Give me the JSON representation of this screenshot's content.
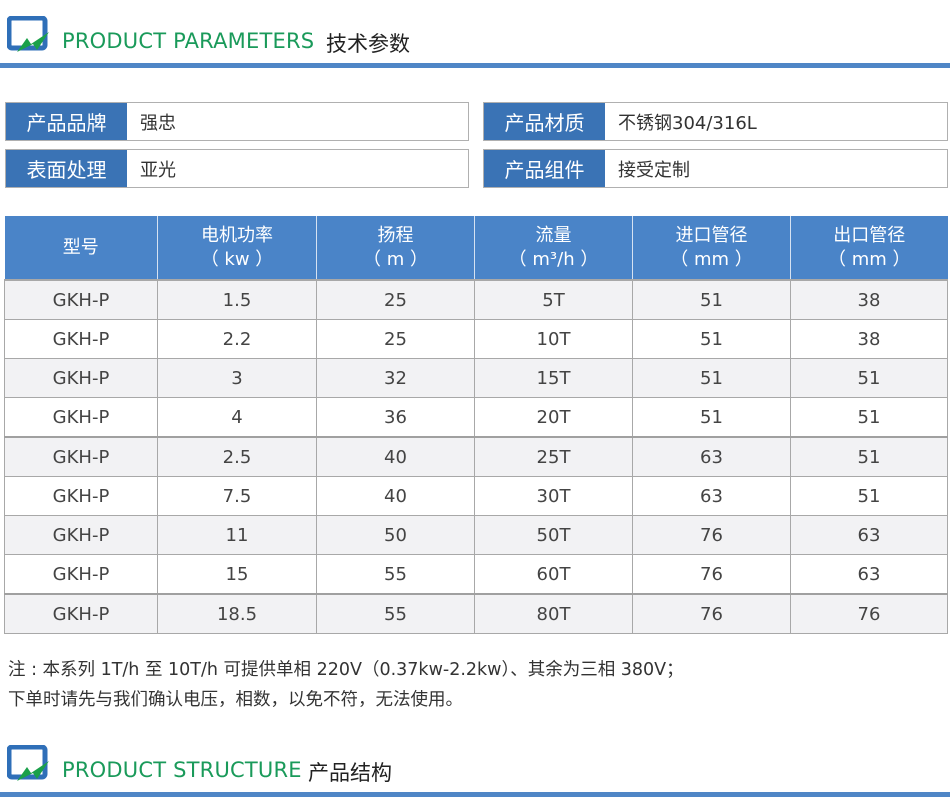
{
  "section1": {
    "title_en": "PRODUCT PARAMETERS",
    "title_cn": "技术参数",
    "logo": "zn-logo-icon"
  },
  "specs": [
    {
      "label": "产品品牌",
      "value": "强忠"
    },
    {
      "label": "产品材质",
      "value": "不锈钢304/316L"
    },
    {
      "label": "表面处理",
      "value": "亚光"
    },
    {
      "label": "产品组件",
      "value": "接受定制"
    }
  ],
  "table": {
    "headers": [
      {
        "line1": "型号",
        "line2": ""
      },
      {
        "line1": "电机功率",
        "line2": "（ kw ）"
      },
      {
        "line1": "扬程",
        "line2": "（ m ）"
      },
      {
        "line1": "流量",
        "line2": "（ m³/h ）"
      },
      {
        "line1": "进口管径",
        "line2": "（ mm ）"
      },
      {
        "line1": "出口管径",
        "line2": "（ mm ）"
      }
    ],
    "rows": [
      [
        "GKH-P",
        "1.5",
        "25",
        "5T",
        "51",
        "38"
      ],
      [
        "GKH-P",
        "2.2",
        "25",
        "10T",
        "51",
        "38"
      ],
      [
        "GKH-P",
        "3",
        "32",
        "15T",
        "51",
        "51"
      ],
      [
        "GKH-P",
        "4",
        "36",
        "20T",
        "51",
        "51"
      ],
      [
        "GKH-P",
        "2.5",
        "40",
        "25T",
        "63",
        "51"
      ],
      [
        "GKH-P",
        "7.5",
        "40",
        "30T",
        "63",
        "51"
      ],
      [
        "GKH-P",
        "11",
        "50",
        "50T",
        "76",
        "63"
      ],
      [
        "GKH-P",
        "15",
        "55",
        "60T",
        "76",
        "63"
      ],
      [
        "GKH-P",
        "18.5",
        "55",
        "80T",
        "76",
        "76"
      ]
    ]
  },
  "notes": [
    "注 : 本系列 1T/h 至 10T/h 可提供单相 220V（0.37kw-2.2kw）、其余为三相 380V；",
    "下单时请先与我们确认电压，相数，以免不符，无法使用。"
  ],
  "section2": {
    "title_en": "PRODUCT STRUCTURE",
    "title_cn": "产品结构",
    "logo": "zn-logo-icon"
  },
  "colors": {
    "accent_blue": "#3a73b5",
    "header_blue": "#4a84c8",
    "title_green": "#1a9a5a"
  }
}
